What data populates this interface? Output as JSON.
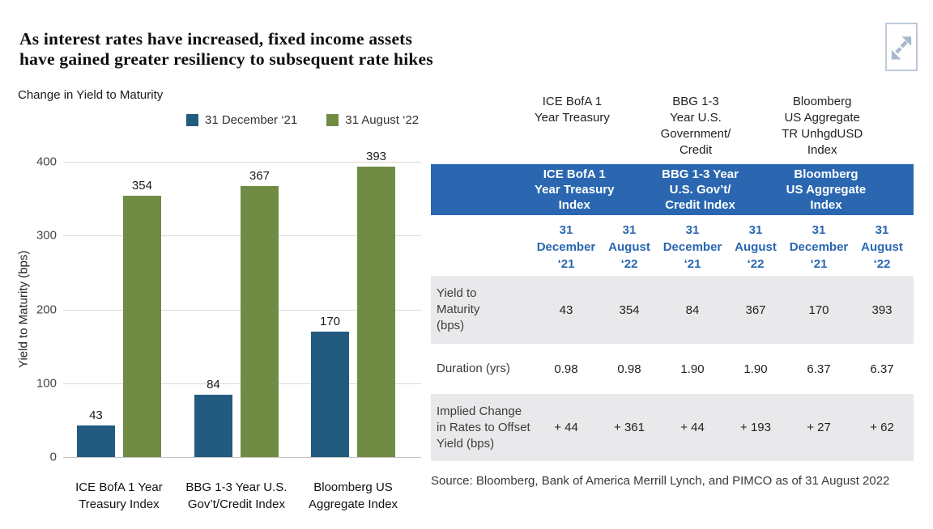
{
  "title": "As interest rates have increased, fixed income assets\nhave gained greater resiliency to subsequent rate hikes",
  "chart": {
    "label": "Change in Yield to Maturity",
    "ylabel": "Yield to Maturity (bps)"
  },
  "chart_data": {
    "type": "bar",
    "title": "Change in Yield to Maturity",
    "categories": [
      "ICE BofA 1 Year\nTreasury Index",
      "BBG 1-3 Year U.S.\nGov’t/Credit Index",
      "Bloomberg US\nAggregate Index"
    ],
    "series": [
      {
        "name": "31 December ‘21",
        "color": "#225a80",
        "values": [
          43,
          84,
          170
        ]
      },
      {
        "name": "31 August ‘22",
        "color": "#708c44",
        "values": [
          354,
          367,
          393
        ]
      }
    ],
    "xlabel": "",
    "ylabel": "Yield to Maturity (bps)",
    "ylim": [
      0,
      400
    ],
    "yticks": [
      0,
      100,
      200,
      300,
      400
    ],
    "grid": true,
    "legend_position": "top"
  },
  "table": {
    "captions": [
      "ICE BofA 1\nYear Treasury",
      "BBG 1-3\nYear U.S.\nGovernment/\nCredit",
      "Bloomberg\nUS Aggregate\nTR UnhgdUSD\nIndex"
    ],
    "group_headers": [
      "ICE BofA 1\nYear Treasury\nIndex",
      "BBG 1-3 Year\nU.S. Gov’t/\nCredit Index",
      "Bloomberg\nUS Aggregate\nIndex"
    ],
    "date_headers": [
      "31\nDecember\n‘21",
      "31\nAugust\n‘22",
      "31\nDecember\n‘21",
      "31\nAugust\n‘22",
      "31\nDecember\n‘21",
      "31\nAugust\n‘22"
    ],
    "rows": [
      {
        "label": "Yield to\nMaturity\n(bps)",
        "values": [
          "43",
          "354",
          "84",
          "367",
          "170",
          "393"
        ]
      },
      {
        "label": "Duration (yrs)",
        "values": [
          "0.98",
          "0.98",
          "1.90",
          "1.90",
          "6.37",
          "6.37"
        ]
      },
      {
        "label": "Implied Change\nin Rates to Offset\nYield (bps)",
        "values": [
          "+ 44",
          "+ 361",
          "+ 44",
          "+ 193",
          "+ 27",
          "+ 62"
        ]
      }
    ],
    "source": "Source: Bloomberg, Bank of America Merrill Lynch, and PIMCO as of 31 August 2022"
  },
  "colors": {
    "series_dec21": "#225a80",
    "series_aug22": "#708c44",
    "table_header_bg": "#2a67b0",
    "shaded_row_bg": "#e9e9ec",
    "expand_icon": "#a9b8ce"
  }
}
